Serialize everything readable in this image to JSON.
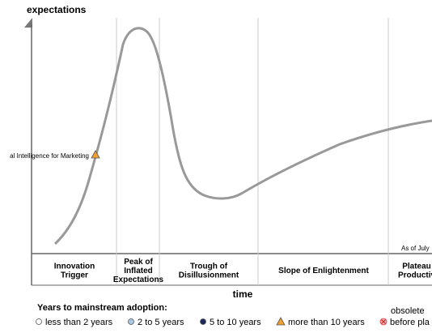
{
  "chart_data": {
    "type": "line",
    "ylabel": "expectations",
    "xlabel": "time",
    "as_of": "As of July",
    "phases": [
      {
        "lines": [
          "Innovation",
          "Trigger"
        ]
      },
      {
        "lines": [
          "Peak of",
          "Inflated",
          "Expectations"
        ]
      },
      {
        "lines": [
          "Trough of",
          "Disillusionment"
        ]
      },
      {
        "lines": [
          "Slope of Enlightenment"
        ]
      },
      {
        "lines": [
          "Plateau",
          "Productiv"
        ]
      }
    ],
    "technologies": [
      {
        "label": "al Intelligence for Marketing",
        "adoption": "more than 10 years",
        "marker": "triangle",
        "color": "#f0a030"
      }
    ],
    "legend": {
      "title": "Years to mainstream adoption:",
      "items": [
        {
          "label": "less than 2 years",
          "marker": "circle-white"
        },
        {
          "label": "2 to 5 years",
          "marker": "circle-lightblue"
        },
        {
          "label": "5 to 10 years",
          "marker": "circle-navy"
        },
        {
          "label": "more than 10 years",
          "marker": "triangle-orange"
        }
      ],
      "obsolete_label": "obsolete",
      "obsolete_sub_label": "before pla"
    },
    "colors": {
      "curve": "#999999",
      "axis": "#666666",
      "divider": "#cccccc",
      "triangle": "#f0a030",
      "lightblue": "#a8c8e8",
      "navy": "#1a2a5a",
      "obsolete": "#e04040"
    }
  }
}
